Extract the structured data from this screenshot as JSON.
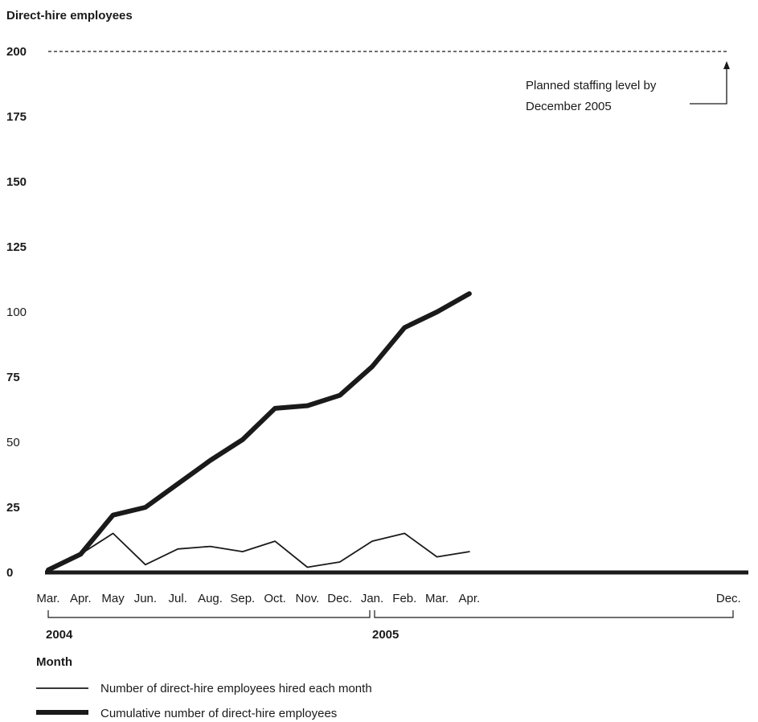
{
  "chart_data": {
    "type": "line",
    "ylabel": "Direct-hire employees",
    "xlabel": "Month",
    "ylim": [
      0,
      200
    ],
    "y_ticks": [
      0,
      25,
      50,
      75,
      100,
      125,
      150,
      175,
      200
    ],
    "x_ticks": [
      "Mar.",
      "Apr.",
      "May",
      "Jun.",
      "Jul.",
      "Aug.",
      "Sep.",
      "Oct.",
      "Nov.",
      "Dec.",
      "Jan.",
      "Feb.",
      "Mar.",
      "Apr.",
      "Dec."
    ],
    "year_labels": [
      "2004",
      "2005"
    ],
    "categories": [
      "Mar. 2004",
      "Apr. 2004",
      "May 2004",
      "Jun. 2004",
      "Jul. 2004",
      "Aug. 2004",
      "Sep. 2004",
      "Oct. 2004",
      "Nov. 2004",
      "Dec. 2004",
      "Jan. 2005",
      "Feb. 2005",
      "Mar. 2005",
      "Apr. 2005"
    ],
    "series": [
      {
        "name": "Number of direct-hire employees hired each month",
        "values": [
          1,
          7,
          15,
          3,
          9,
          10,
          8,
          12,
          2,
          4,
          12,
          15,
          6,
          8
        ]
      },
      {
        "name": "Cumulative number of direct-hire employees",
        "values": [
          1,
          7,
          22,
          25,
          34,
          43,
          51,
          63,
          64,
          68,
          79,
          94,
          100,
          107
        ]
      }
    ],
    "reference_line": {
      "value": 200,
      "style": "dashed"
    },
    "annotation": "Planned staffing level by December 2005",
    "legend_position": "bottom-left",
    "grid": false
  }
}
